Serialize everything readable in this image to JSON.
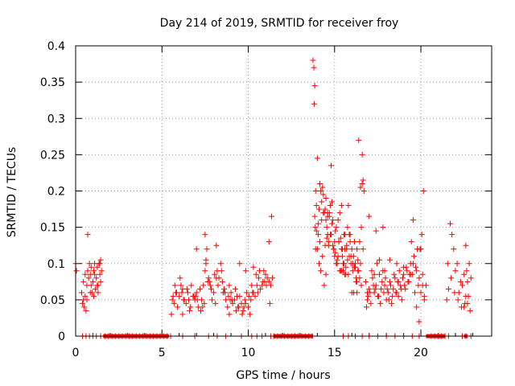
{
  "chart_data": {
    "type": "scatter",
    "title": "Day 214 of 2019, SRMTID for receiver froy",
    "xlabel": "GPS time / hours",
    "ylabel": "SRMTID / TECUs",
    "xlim": [
      0,
      24.1
    ],
    "ylim": [
      0,
      0.4
    ],
    "xticks": [
      0,
      5,
      10,
      15,
      20
    ],
    "xtick_labels": [
      "0",
      "5",
      "10",
      "15",
      "20"
    ],
    "yticks": [
      0,
      0.05,
      0.1,
      0.15,
      0.2,
      0.25,
      0.3,
      0.35,
      0.4
    ],
    "ytick_labels": [
      "0",
      "0.05",
      "0.1",
      "0.15",
      "0.2",
      "0.25",
      "0.3",
      "0.35",
      "0.4"
    ],
    "grid": true,
    "marker": "+",
    "series": [
      {
        "name": "SRMTID",
        "color": "#ff0000",
        "x": [
          0.0,
          0.05,
          0.35,
          0.4,
          0.45,
          0.5,
          0.55,
          0.6,
          0.65,
          0.7,
          0.75,
          0.8,
          0.85,
          0.9,
          0.95,
          1.0,
          1.05,
          1.1,
          1.15,
          1.2,
          1.25,
          1.3,
          1.35,
          1.4,
          1.45,
          1.5,
          0.7,
          0.9,
          1.1,
          1.3,
          1.45,
          0.45,
          0.55,
          0.65,
          0.85,
          1.05,
          1.25,
          1.4,
          5.55,
          5.6,
          5.7,
          5.8,
          5.9,
          6.0,
          6.1,
          6.2,
          6.3,
          6.4,
          6.5,
          6.6,
          6.7,
          6.8,
          6.9,
          7.0,
          7.1,
          7.2,
          7.3,
          7.4,
          7.5,
          7.55,
          7.6,
          7.7,
          7.8,
          7.9,
          8.0,
          8.1,
          8.2,
          8.3,
          8.4,
          8.5,
          8.6,
          8.7,
          8.8,
          8.9,
          9.0,
          9.1,
          9.2,
          9.3,
          9.4,
          9.5,
          9.6,
          9.7,
          9.8,
          9.9,
          10.0,
          10.1,
          10.2,
          10.3,
          10.4,
          10.5,
          10.6,
          10.7,
          10.8,
          10.9,
          11.0,
          11.1,
          11.2,
          11.3,
          11.4,
          5.65,
          5.85,
          6.05,
          6.25,
          6.45,
          6.65,
          6.85,
          7.05,
          7.25,
          7.45,
          7.65,
          7.85,
          8.05,
          8.25,
          8.45,
          8.65,
          8.85,
          9.05,
          9.25,
          9.45,
          9.65,
          9.85,
          10.05,
          10.25,
          10.45,
          10.65,
          10.85,
          11.05,
          11.25,
          5.75,
          6.15,
          6.55,
          6.95,
          7.35,
          7.75,
          8.15,
          8.55,
          8.95,
          9.35,
          9.75,
          10.15,
          10.55,
          10.95,
          11.35,
          7.5,
          7.55,
          8.15,
          9.85,
          6.2,
          7.0,
          8.9,
          9.5,
          10.3,
          11.2,
          13.75,
          13.8,
          13.82,
          13.85,
          13.88,
          13.9,
          13.95,
          14.0,
          14.05,
          14.1,
          14.15,
          14.2,
          14.25,
          14.3,
          14.35,
          14.4,
          14.45,
          14.5,
          14.55,
          14.6,
          14.65,
          14.7,
          14.75,
          14.8,
          14.85,
          14.9,
          14.95,
          15.0,
          15.05,
          15.1,
          15.15,
          15.2,
          15.25,
          15.3,
          15.35,
          15.4,
          15.45,
          15.5,
          15.55,
          15.6,
          15.65,
          15.7,
          15.75,
          15.8,
          15.85,
          15.9,
          15.95,
          16.0,
          16.05,
          16.1,
          16.15,
          16.2,
          16.25,
          16.3,
          16.35,
          16.4,
          16.45,
          16.5,
          16.55,
          16.6,
          16.65,
          16.7,
          13.85,
          13.95,
          14.05,
          14.15,
          14.25,
          14.35,
          14.45,
          14.55,
          14.65,
          14.75,
          14.85,
          14.95,
          15.05,
          15.15,
          15.25,
          15.35,
          15.45,
          15.55,
          15.65,
          15.75,
          15.85,
          15.95,
          16.05,
          16.15,
          16.25,
          16.35,
          16.45,
          16.55,
          16.65,
          14.0,
          14.2,
          14.4,
          14.6,
          14.8,
          15.0,
          15.2,
          15.4,
          15.6,
          15.8,
          16.0,
          16.2,
          16.4,
          16.6,
          14.1,
          14.3,
          14.5,
          14.7,
          14.9,
          15.1,
          15.3,
          15.5,
          15.7,
          15.9,
          16.1,
          16.3,
          16.5,
          13.9,
          14.5,
          14.6,
          15.4,
          15.6,
          16.3,
          16.8,
          16.9,
          17.0,
          17.1,
          17.2,
          17.3,
          17.4,
          17.5,
          17.6,
          17.7,
          17.8,
          17.9,
          18.0,
          18.1,
          18.2,
          18.3,
          18.4,
          18.5,
          18.6,
          18.7,
          18.8,
          18.9,
          19.0,
          19.1,
          19.2,
          19.3,
          19.4,
          19.5,
          19.6,
          19.7,
          19.8,
          19.9,
          20.0,
          20.1,
          20.2,
          16.85,
          16.95,
          17.05,
          17.15,
          17.25,
          17.35,
          17.45,
          17.55,
          17.65,
          17.75,
          17.85,
          17.95,
          18.05,
          18.15,
          18.25,
          18.35,
          18.45,
          18.55,
          18.65,
          18.75,
          18.85,
          18.95,
          19.05,
          19.15,
          19.25,
          19.35,
          19.45,
          19.55,
          19.65,
          19.75,
          19.85,
          19.95,
          20.05,
          20.15,
          17.0,
          17.4,
          17.8,
          18.2,
          18.6,
          19.0,
          19.4,
          19.8,
          20.2,
          19.55,
          19.75,
          19.9,
          20.0,
          20.1,
          17.6,
          17.9,
          18.7,
          16.9,
          17.3,
          20.3,
          21.5,
          21.6,
          21.7,
          21.8,
          21.9,
          22.0,
          22.1,
          22.2,
          22.3,
          22.4,
          22.5,
          22.6,
          22.7,
          22.8,
          22.9,
          21.55,
          21.75,
          21.95,
          22.15,
          22.35,
          22.55,
          22.75,
          22.85,
          22.5,
          22.6,
          22.65,
          22.7,
          0.4,
          0.6,
          0.8,
          1.0,
          1.2,
          1.45,
          1.7,
          1.9,
          2.1,
          2.3,
          2.5,
          2.7,
          2.9,
          3.1,
          3.3,
          3.5,
          3.7,
          3.9,
          4.1,
          4.3,
          4.5,
          4.7,
          4.9,
          5.1,
          5.3,
          5.5,
          6.2,
          6.9,
          7.7,
          8.2,
          8.7,
          9.6,
          10.2,
          10.5,
          10.8,
          11.3,
          11.5,
          11.7,
          11.9,
          12.1,
          12.3,
          12.5,
          12.7,
          12.9,
          13.1,
          13.3,
          13.5,
          13.7,
          15.5,
          15.8,
          16.2,
          16.6,
          17.0,
          17.5,
          18.0,
          18.5,
          19.0,
          19.5,
          19.9,
          20.6,
          20.8,
          21.0,
          21.2,
          21.4,
          21.6,
          22.4,
          22.6,
          22.9
        ],
        "y": [
          0.1,
          0.09,
          0.06,
          0.045,
          0.05,
          0.04,
          0.055,
          0.035,
          0.07,
          0.09,
          0.08,
          0.1,
          0.085,
          0.07,
          0.06,
          0.075,
          0.09,
          0.1,
          0.065,
          0.08,
          0.095,
          0.07,
          0.1,
          0.085,
          0.105,
          0.09,
          0.14,
          0.095,
          0.085,
          0.06,
          0.075,
          0.075,
          0.085,
          0.05,
          0.06,
          0.055,
          0.07,
          0.1,
          0.03,
          0.05,
          0.045,
          0.06,
          0.04,
          0.055,
          0.07,
          0.065,
          0.05,
          0.045,
          0.06,
          0.035,
          0.07,
          0.055,
          0.05,
          0.06,
          0.04,
          0.065,
          0.05,
          0.07,
          0.09,
          0.1,
          0.12,
          0.08,
          0.07,
          0.05,
          0.06,
          0.045,
          0.09,
          0.08,
          0.1,
          0.075,
          0.065,
          0.05,
          0.04,
          0.07,
          0.06,
          0.045,
          0.05,
          0.035,
          0.04,
          0.055,
          0.045,
          0.035,
          0.05,
          0.06,
          0.04,
          0.03,
          0.07,
          0.06,
          0.055,
          0.07,
          0.08,
          0.065,
          0.07,
          0.09,
          0.085,
          0.08,
          0.075,
          0.07,
          0.08,
          0.055,
          0.06,
          0.08,
          0.05,
          0.065,
          0.04,
          0.055,
          0.05,
          0.035,
          0.045,
          0.075,
          0.065,
          0.085,
          0.07,
          0.09,
          0.06,
          0.055,
          0.05,
          0.065,
          0.04,
          0.03,
          0.045,
          0.055,
          0.06,
          0.085,
          0.09,
          0.075,
          0.07,
          0.045,
          0.07,
          0.06,
          0.05,
          0.055,
          0.04,
          0.075,
          0.08,
          0.06,
          0.05,
          0.055,
          0.04,
          0.05,
          0.06,
          0.075,
          0.165,
          0.14,
          0.105,
          0.125,
          0.09,
          0.03,
          0.12,
          0.03,
          0.1,
          0.095,
          0.13,
          0.38,
          0.37,
          0.32,
          0.345,
          0.15,
          0.2,
          0.18,
          0.12,
          0.14,
          0.1,
          0.13,
          0.09,
          0.16,
          0.11,
          0.17,
          0.07,
          0.125,
          0.19,
          0.15,
          0.165,
          0.13,
          0.17,
          0.18,
          0.14,
          0.185,
          0.16,
          0.12,
          0.11,
          0.145,
          0.15,
          0.1,
          0.16,
          0.13,
          0.09,
          0.135,
          0.12,
          0.11,
          0.1,
          0.14,
          0.12,
          0.095,
          0.125,
          0.105,
          0.085,
          0.11,
          0.13,
          0.1,
          0.12,
          0.09,
          0.11,
          0.13,
          0.095,
          0.08,
          0.12,
          0.105,
          0.09,
          0.08,
          0.1,
          0.07,
          0.25,
          0.215,
          0.2,
          0.165,
          0.145,
          0.155,
          0.21,
          0.185,
          0.195,
          0.175,
          0.135,
          0.125,
          0.14,
          0.155,
          0.12,
          0.115,
          0.105,
          0.13,
          0.09,
          0.12,
          0.1,
          0.085,
          0.15,
          0.14,
          0.11,
          0.1,
          0.095,
          0.075,
          0.09,
          0.13,
          0.15,
          0.12,
          0.245,
          0.2,
          0.17,
          0.14,
          0.235,
          0.13,
          0.11,
          0.09,
          0.085,
          0.18,
          0.06,
          0.1,
          0.27,
          0.21,
          0.175,
          0.205,
          0.16,
          0.165,
          0.125,
          0.1,
          0.17,
          0.09,
          0.12,
          0.14,
          0.06,
          0.075,
          0.205,
          0.12,
          0.085,
          0.17,
          0.18,
          0.14,
          0.06,
          0.075,
          0.05,
          0.065,
          0.045,
          0.08,
          0.06,
          0.07,
          0.055,
          0.085,
          0.065,
          0.09,
          0.07,
          0.05,
          0.06,
          0.075,
          0.045,
          0.065,
          0.08,
          0.06,
          0.055,
          0.07,
          0.05,
          0.085,
          0.065,
          0.09,
          0.075,
          0.1,
          0.085,
          0.11,
          0.095,
          0.12,
          0.08,
          0.06,
          0.07,
          0.05,
          0.04,
          0.055,
          0.06,
          0.09,
          0.07,
          0.065,
          0.1,
          0.055,
          0.045,
          0.075,
          0.06,
          0.08,
          0.065,
          0.05,
          0.07,
          0.055,
          0.085,
          0.06,
          0.075,
          0.09,
          0.065,
          0.08,
          0.07,
          0.095,
          0.075,
          0.085,
          0.13,
          0.1,
          0.06,
          0.09,
          0.07,
          0.12,
          0.14,
          0.2,
          0.165,
          0.145,
          0.15,
          0.105,
          0.1,
          0.095,
          0.085,
          0.12,
          0.055,
          0.16,
          0.04,
          0.02,
          0.12,
          0.085,
          0.105,
          0.09,
          0.075,
          0.06,
          0.085,
          0.07,
          0.05,
          0.065,
          0.155,
          0.14,
          0.12,
          0.09,
          0.1,
          0.06,
          0.075,
          0.07,
          0.04,
          0.055,
          0.045,
          0.1,
          0.08,
          0.1,
          0.08,
          0.06,
          0.05,
          0.04,
          0.045,
          0.055,
          0.035,
          0.085,
          0.125,
          0.09,
          0.075,
          0,
          0,
          0,
          0,
          0,
          0,
          0,
          0,
          0,
          0,
          0,
          0,
          0,
          0,
          0,
          0,
          0,
          0,
          0,
          0,
          0,
          0,
          0,
          0,
          0,
          0,
          0,
          0,
          0,
          0,
          0,
          0,
          0,
          0,
          0,
          0,
          0,
          0,
          0,
          0,
          0,
          0,
          0,
          0,
          0,
          0,
          0,
          0,
          0,
          0,
          0,
          0,
          0,
          0,
          0,
          0,
          0,
          0,
          0,
          0,
          0,
          0,
          0,
          0,
          0,
          0,
          0,
          0
        ]
      }
    ]
  }
}
